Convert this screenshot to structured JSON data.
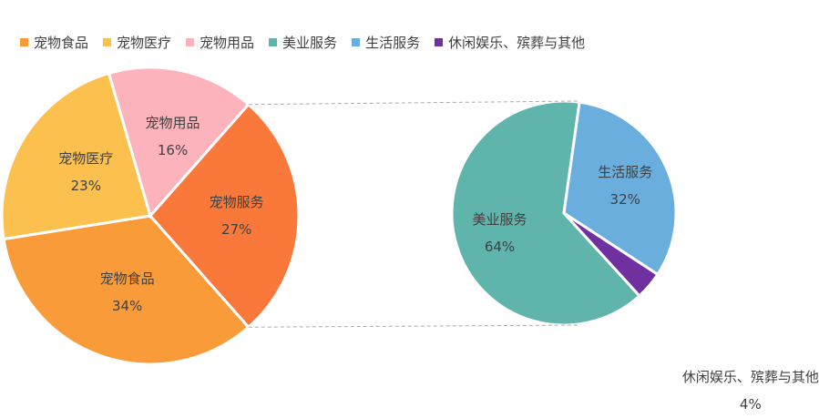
{
  "chart_data": {
    "type": "pie-of-pie",
    "main": {
      "categories": [
        "宠物食品",
        "宠物医疗",
        "宠物用品",
        "宠物服务"
      ],
      "values": [
        34,
        23,
        16,
        27
      ],
      "value_labels": [
        "34%",
        "23%",
        "16%",
        "27%"
      ],
      "colors": [
        "#f99b38",
        "#fcc04e",
        "#fcb3bc",
        "#f9783a"
      ]
    },
    "detail": {
      "categories": [
        "美业服务",
        "生活服务",
        "休闲娱乐、殡葬与其他"
      ],
      "values": [
        64,
        32,
        4
      ],
      "value_labels": [
        "64%",
        "32%",
        "4%"
      ],
      "colors": [
        "#5fb4ac",
        "#6aaedd",
        "#7030a0"
      ]
    },
    "split_index": 3,
    "legend": "top"
  }
}
